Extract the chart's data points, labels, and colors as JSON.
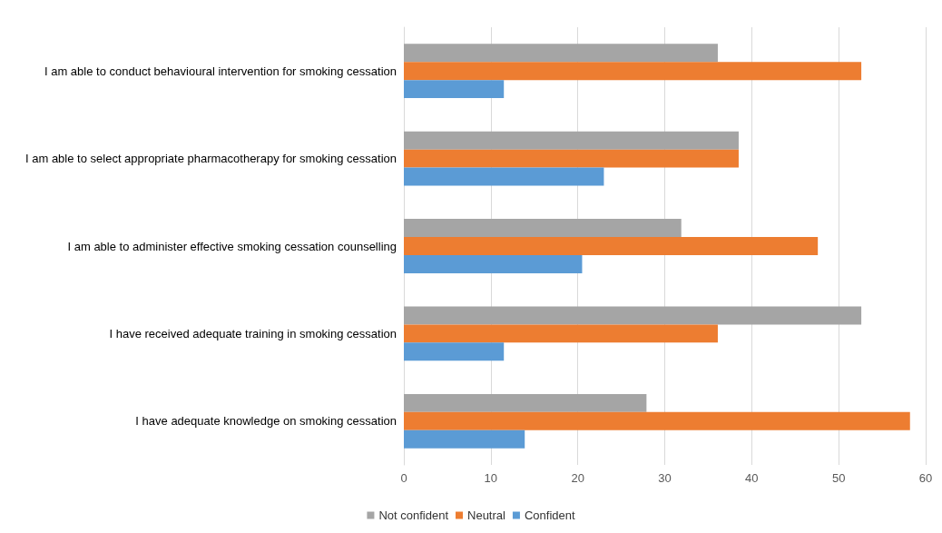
{
  "chart_data": {
    "type": "bar",
    "orientation": "horizontal",
    "categories": [
      "I am able to conduct behavioural intervention for smoking cessation",
      "I am able to select appropriate pharmacotherapy for smoking cessation",
      "I am able to administer effective smoking cessation counselling",
      "I have received adequate training in smoking cessation",
      "I have adequate knowledge on smoking cessation"
    ],
    "series": [
      {
        "name": "Not confident",
        "color": "#a5a5a5",
        "values": [
          36.1,
          38.5,
          31.9,
          52.6,
          27.9
        ]
      },
      {
        "name": "Neutral",
        "color": "#ed7d31",
        "values": [
          52.6,
          38.5,
          47.6,
          36.1,
          58.2
        ]
      },
      {
        "name": "Confident",
        "color": "#5b9bd5",
        "values": [
          11.5,
          23.0,
          20.5,
          11.5,
          13.9
        ]
      }
    ],
    "xlim": [
      0,
      60
    ],
    "xticks": [
      0,
      10,
      20,
      30,
      40,
      50,
      60
    ],
    "grid": "x",
    "legend": "bottom"
  }
}
